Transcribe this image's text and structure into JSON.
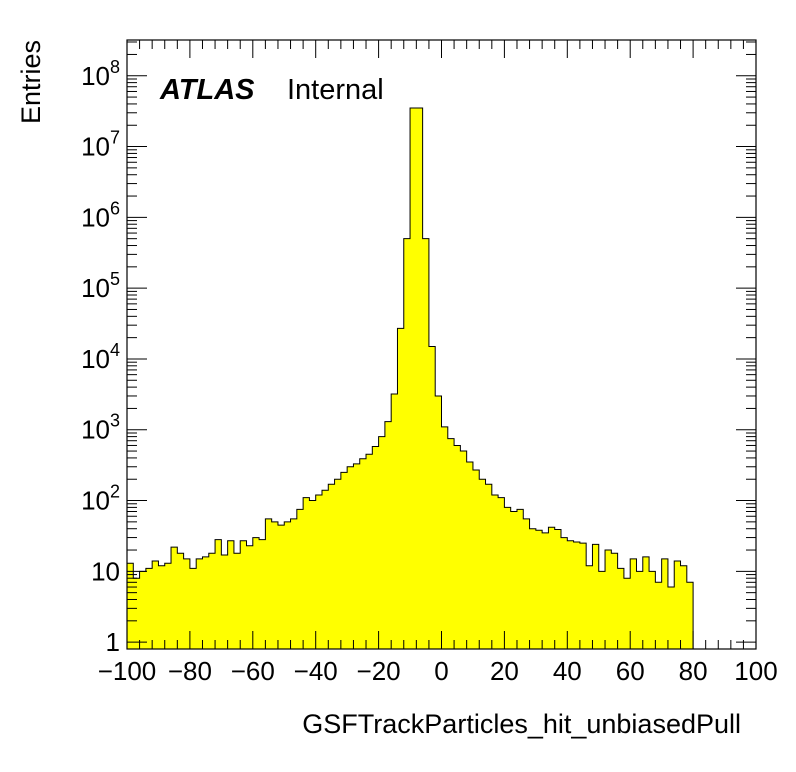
{
  "chart_data": {
    "type": "bar",
    "histogram_style": "step-filled",
    "fill_color": "#ffff00",
    "line_color": "#000000",
    "title": "",
    "xlabel": "GSFTrackParticles_hit_unbiasedPull",
    "ylabel": "Entries",
    "log_y": true,
    "xlim": [
      -100,
      100
    ],
    "ylim": [
      0.8,
      320000000.0
    ],
    "grid": false,
    "legend": "none",
    "x_ticks": [
      -100,
      -80,
      -60,
      -40,
      -20,
      0,
      20,
      40,
      60,
      80,
      100
    ],
    "x_tick_labels": [
      "−100",
      "−80",
      "−60",
      "−40",
      "−20",
      "0",
      "20",
      "40",
      "60",
      "80",
      "100"
    ],
    "y_ticks": [
      {
        "value": 1,
        "base": "1",
        "exp": ""
      },
      {
        "value": 10,
        "base": "10",
        "exp": ""
      },
      {
        "value": 100,
        "base": "10",
        "exp": "2"
      },
      {
        "value": 1000,
        "base": "10",
        "exp": "3"
      },
      {
        "value": 10000,
        "base": "10",
        "exp": "4"
      },
      {
        "value": 100000,
        "base": "10",
        "exp": "5"
      },
      {
        "value": 1000000,
        "base": "10",
        "exp": "6"
      },
      {
        "value": 10000000,
        "base": "10",
        "exp": "7"
      },
      {
        "value": 100000000,
        "base": "10",
        "exp": "8"
      }
    ],
    "bin_edges_start": -100,
    "bin_width": 2,
    "values": [
      13,
      8,
      10,
      11,
      14,
      12,
      13,
      22,
      18,
      15,
      11,
      15,
      16,
      18,
      28,
      17,
      27,
      18,
      27,
      23,
      30,
      28,
      55,
      50,
      45,
      50,
      55,
      75,
      110,
      100,
      120,
      140,
      170,
      200,
      250,
      300,
      330,
      390,
      450,
      580,
      800,
      1300,
      3200,
      27000,
      500000,
      35000000,
      35000000,
      500000,
      15000,
      3000,
      1100,
      750,
      600,
      500,
      350,
      270,
      200,
      170,
      120,
      110,
      80,
      70,
      75,
      55,
      40,
      38,
      35,
      42,
      39,
      30,
      27,
      26,
      25,
      12,
      24,
      10,
      20,
      18,
      11,
      8,
      15,
      10,
      16,
      10,
      7,
      15,
      6,
      14,
      12,
      7
    ],
    "annotations": [
      {
        "label": "ATLAS",
        "style": "bold-italic"
      },
      {
        "label": "Internal",
        "style": "normal"
      }
    ]
  }
}
